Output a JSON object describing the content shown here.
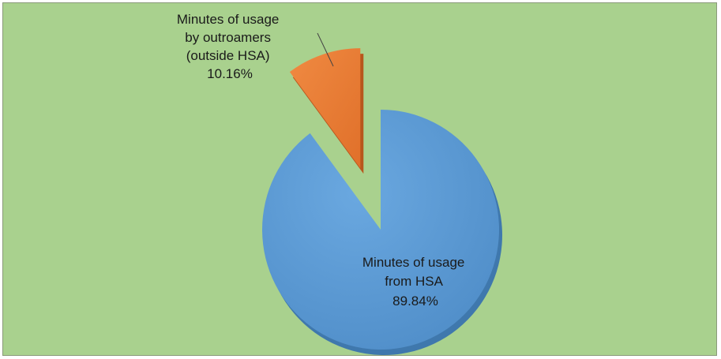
{
  "colors": {
    "background": "#a9d18e",
    "hsa_slice": "#5b9bd5",
    "outroamer_slice": "#ed7d31"
  },
  "chart_data": {
    "type": "pie",
    "title": "",
    "slices": [
      {
        "label_lines": [
          "Minutes of usage",
          "from HSA"
        ],
        "percent_label": "89.84%",
        "value": 89.84,
        "color": "#5b9bd5"
      },
      {
        "label_lines": [
          "Minutes of usage",
          "by outroamers",
          "(outside HSA)"
        ],
        "percent_label": "10.16%",
        "value": 10.16,
        "color": "#ed7d31"
      }
    ],
    "legend": "none",
    "exploded_slice": 1,
    "style": "3d"
  }
}
